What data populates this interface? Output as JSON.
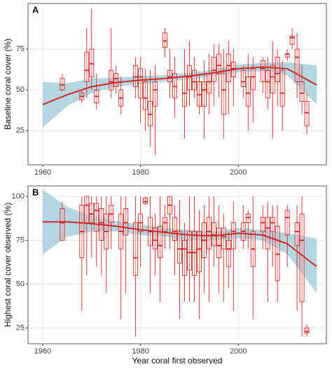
{
  "chart_data": [
    {
      "type": "boxplot",
      "panel_label": "A",
      "y_label": "Baseline coral cover (%)",
      "x_label": null,
      "xlim": [
        1957,
        2018
      ],
      "xticks": [
        1960,
        1980,
        2000
      ],
      "ylim": [
        4,
        103
      ],
      "yticks": [
        25,
        50,
        75
      ],
      "grid": true,
      "box_color": "#d62728",
      "trend_color": "#d62728",
      "band_color": "#a6cfdc",
      "boxes": {
        "x": [
          1964,
          1968,
          1969,
          1970,
          1971,
          1974,
          1975,
          1976,
          1979,
          1980,
          1981,
          1982,
          1983,
          1985,
          1986,
          1987,
          1989,
          1990,
          1991,
          1992,
          1993,
          1994,
          1995,
          1996,
          1997,
          1998,
          1999,
          2001,
          2002,
          2003,
          2005,
          2006,
          2007,
          2008,
          2009,
          2010,
          2011,
          2012,
          2013,
          2014
        ],
        "min": [
          49,
          42,
          45,
          50,
          38,
          45,
          48,
          35,
          45,
          30,
          25,
          15,
          10,
          70,
          45,
          33,
          20,
          40,
          45,
          35,
          20,
          35,
          40,
          45,
          20,
          35,
          40,
          45,
          25,
          30,
          48,
          38,
          20,
          40,
          25,
          68,
          75,
          45,
          35,
          23
        ],
        "q1": [
          50,
          44,
          55,
          58,
          42,
          50,
          52,
          40,
          52,
          45,
          38,
          28,
          40,
          76,
          55,
          45,
          40,
          50,
          50,
          40,
          40,
          48,
          55,
          60,
          35,
          55,
          58,
          52,
          40,
          50,
          55,
          45,
          48,
          55,
          40,
          70,
          78,
          55,
          43,
          28
        ],
        "median": [
          53,
          46,
          62,
          66,
          46,
          55,
          57,
          45,
          58,
          58,
          45,
          35,
          50,
          80,
          58,
          52,
          48,
          58,
          55,
          47,
          50,
          55,
          62,
          65,
          50,
          65,
          63,
          55,
          48,
          58,
          63,
          55,
          58,
          60,
          48,
          72,
          82,
          70,
          48,
          36
        ],
        "q3": [
          57,
          48,
          73,
          75,
          50,
          62,
          60,
          50,
          65,
          63,
          55,
          43,
          55,
          85,
          62,
          60,
          58,
          65,
          62,
          55,
          55,
          60,
          70,
          72,
          60,
          72,
          67,
          62,
          58,
          63,
          68,
          62,
          65,
          70,
          62,
          72,
          83,
          75,
          55,
          43
        ],
        "max": [
          60,
          50,
          88,
          100,
          60,
          88,
          65,
          58,
          70,
          70,
          63,
          62,
          65,
          88,
          75,
          70,
          75,
          80,
          70,
          60,
          68,
          72,
          78,
          78,
          75,
          80,
          75,
          65,
          72,
          70,
          70,
          70,
          80,
          75,
          68,
          75,
          88,
          85,
          65,
          48
        ]
      },
      "trend": {
        "x": [
          1960,
          1965,
          1970,
          1975,
          1980,
          1985,
          1990,
          1995,
          2000,
          2005,
          2010,
          2016
        ],
        "y": [
          41,
          47,
          52,
          54.5,
          56,
          57,
          58.5,
          60.5,
          63,
          64,
          63,
          53
        ],
        "lower": [
          27,
          40,
          48,
          52,
          53.5,
          55,
          56.5,
          58.5,
          61,
          61.5,
          59,
          41
        ],
        "upper": [
          55,
          54,
          57,
          57.5,
          58.5,
          59,
          60.5,
          62.5,
          65.5,
          66.5,
          67,
          65
        ]
      }
    },
    {
      "type": "boxplot",
      "panel_label": "B",
      "y_label": "Highest coral cover observed (%)",
      "x_label": "Year coral first observed",
      "xlim": [
        1957,
        2018
      ],
      "xticks": [
        1960,
        1980,
        2000
      ],
      "ylim": [
        16,
        106
      ],
      "yticks": [
        25,
        50,
        75,
        100
      ],
      "grid": true,
      "box_color": "#d62728",
      "trend_color": "#d62728",
      "band_color": "#a6cfdc",
      "boxes": {
        "x": [
          1964,
          1968,
          1969,
          1970,
          1971,
          1972,
          1973,
          1974,
          1976,
          1977,
          1979,
          1980,
          1981,
          1982,
          1983,
          1984,
          1985,
          1986,
          1987,
          1988,
          1989,
          1990,
          1991,
          1992,
          1993,
          1994,
          1995,
          1996,
          1997,
          1998,
          1999,
          2001,
          2002,
          2003,
          2005,
          2006,
          2007,
          2008,
          2010,
          2012,
          2013,
          2014
        ],
        "min": [
          75,
          35,
          55,
          65,
          60,
          55,
          45,
          70,
          30,
          45,
          20,
          60,
          95,
          45,
          55,
          40,
          70,
          70,
          55,
          30,
          40,
          40,
          40,
          30,
          45,
          40,
          60,
          45,
          40,
          48,
          35,
          70,
          70,
          30,
          70,
          40,
          60,
          40,
          60,
          35,
          20,
          20
        ],
        "q1": [
          75,
          65,
          85,
          85,
          80,
          75,
          70,
          85,
          70,
          78,
          55,
          80,
          96,
          72,
          70,
          65,
          80,
          90,
          75,
          62,
          55,
          58,
          55,
          57,
          65,
          70,
          72,
          65,
          70,
          60,
          70,
          75,
          85,
          60,
          80,
          70,
          80,
          52,
          78,
          72,
          40,
          22
        ],
        "median": [
          85,
          80,
          95,
          90,
          92,
          85,
          80,
          90,
          80,
          85,
          65,
          85,
          97,
          80,
          75,
          72,
          85,
          95,
          80,
          70,
          70,
          68,
          68,
          70,
          75,
          80,
          78,
          72,
          77,
          70,
          80,
          80,
          88,
          70,
          85,
          82,
          85,
          67,
          88,
          80,
          75,
          23
        ],
        "q3": [
          93,
          95,
          100,
          96,
          96,
          93,
          90,
          95,
          90,
          93,
          85,
          90,
          99,
          88,
          82,
          83,
          88,
          100,
          88,
          80,
          75,
          80,
          80,
          80,
          85,
          88,
          85,
          82,
          82,
          75,
          85,
          85,
          90,
          80,
          88,
          88,
          88,
          83,
          92,
          85,
          90,
          25
        ],
        "max": [
          97,
          100,
          100,
          100,
          100,
          100,
          100,
          100,
          100,
          100,
          100,
          100,
          100,
          100,
          90,
          100,
          95,
          100,
          95,
          98,
          85,
          100,
          100,
          92,
          95,
          100,
          100,
          95,
          90,
          80,
          97,
          95,
          92,
          100,
          95,
          97,
          95,
          95,
          95,
          95,
          100,
          27
        ]
      },
      "trend": {
        "x": [
          1960,
          1965,
          1970,
          1975,
          1980,
          1985,
          1990,
          1995,
          2000,
          2005,
          2010,
          2016
        ],
        "y": [
          85.5,
          85.5,
          84.5,
          83,
          81,
          79.5,
          78,
          77.5,
          79,
          78,
          73,
          60
        ],
        "lower": [
          67,
          77,
          80,
          80,
          78,
          77,
          75,
          75,
          76,
          75,
          67,
          45
        ],
        "upper": [
          104,
          94,
          89,
          86,
          84,
          82,
          81,
          80,
          82,
          81,
          79,
          76
        ]
      }
    }
  ]
}
